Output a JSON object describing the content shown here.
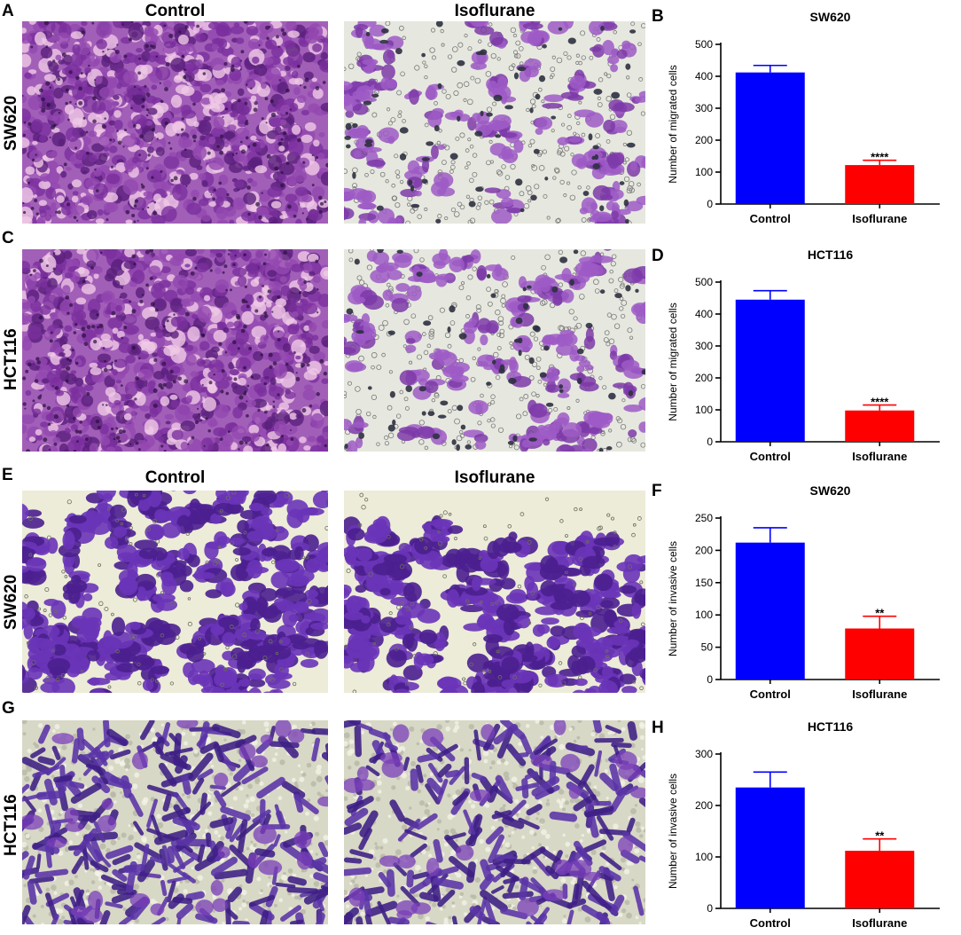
{
  "figure": {
    "panels": {
      "A": "A",
      "B": "B",
      "C": "C",
      "D": "D",
      "E": "E",
      "F": "F",
      "G": "G",
      "H": "H"
    },
    "migration": {
      "col_control": "Control",
      "col_treatment": "Isoflurane",
      "row1": "SW620",
      "row2": "HCT116"
    },
    "invasion": {
      "col_control": "Control",
      "col_treatment": "Isoflurane",
      "row1": "SW620",
      "row2": "HCT116"
    }
  },
  "colors": {
    "control_bar": "#0000ff",
    "isoflurane_bar": "#ff0000",
    "stain_light": "#9b5bc4",
    "stain_dark": "#4a1a86",
    "background_dense": "#d9b8e6",
    "background_sparse": "#e9ebdf"
  },
  "chart_data": [
    {
      "id": "B",
      "type": "bar",
      "title": "SW620",
      "ylabel": "Number of migrated cells",
      "categories": [
        "Control",
        "Isoflurane"
      ],
      "values": [
        412,
        122
      ],
      "errors": [
        22,
        15
      ],
      "significance": [
        "",
        "****"
      ],
      "ylim": [
        0,
        500
      ],
      "yticks": [
        0,
        100,
        200,
        300,
        400,
        500
      ],
      "ytick_labels": [
        "0",
        "100",
        "200",
        "300",
        "400",
        "500"
      ],
      "grid": false
    },
    {
      "id": "D",
      "type": "bar",
      "title": "HCT116",
      "ylabel": "Number of migrated cells",
      "categories": [
        "Control",
        "Isoflurane"
      ],
      "values": [
        445,
        98
      ],
      "errors": [
        28,
        17
      ],
      "significance": [
        "",
        "****"
      ],
      "ylim": [
        0,
        500
      ],
      "yticks": [
        0,
        100,
        200,
        300,
        400,
        500
      ],
      "ytick_labels": [
        "0",
        "100",
        "200",
        "300",
        "400",
        "500"
      ],
      "grid": false
    },
    {
      "id": "F",
      "type": "bar",
      "title": "SW620",
      "ylabel": "Number of invasive cells",
      "categories": [
        "Control",
        "Isoflurane"
      ],
      "values": [
        212,
        79
      ],
      "errors": [
        23,
        19
      ],
      "significance": [
        "",
        "**"
      ],
      "ylim": [
        0,
        250
      ],
      "yticks": [
        0,
        50,
        100,
        150,
        200,
        250
      ],
      "ytick_labels": [
        "0",
        "50",
        "100",
        "150",
        "200",
        "250"
      ],
      "grid": false
    },
    {
      "id": "H",
      "type": "bar",
      "title": "HCT116",
      "ylabel": "Number of invasive cells",
      "categories": [
        "Control",
        "Isoflurane"
      ],
      "values": [
        235,
        112
      ],
      "errors": [
        30,
        23
      ],
      "significance": [
        "",
        "**"
      ],
      "ylim": [
        0,
        300
      ],
      "yticks": [
        0,
        100,
        200,
        300
      ],
      "ytick_labels": [
        "0",
        "100",
        "200",
        "300"
      ],
      "grid": false
    }
  ]
}
